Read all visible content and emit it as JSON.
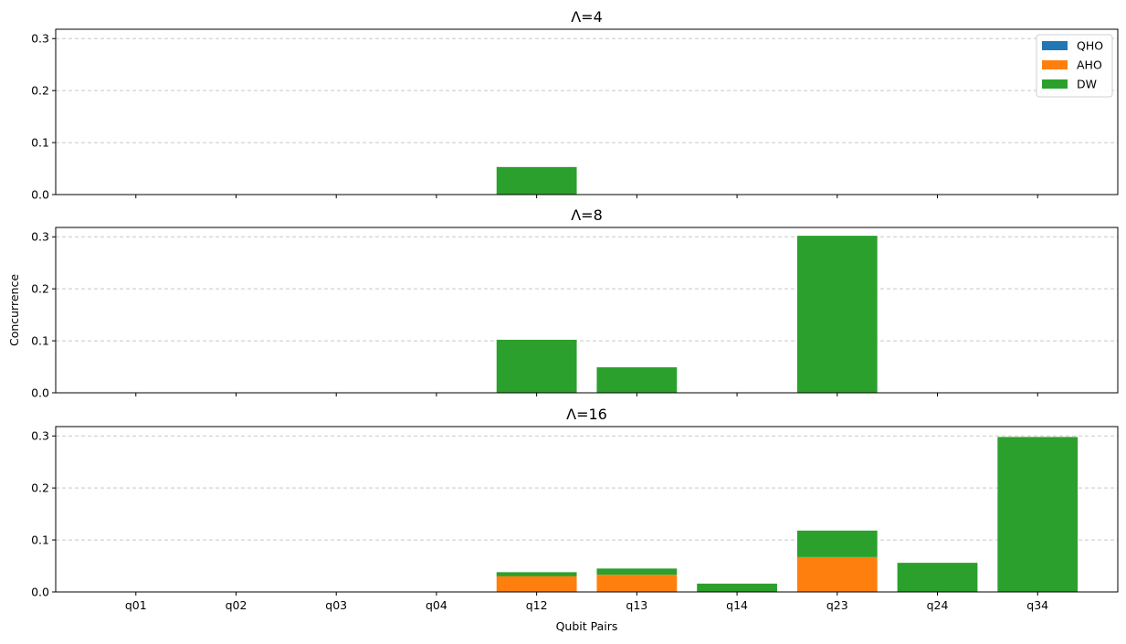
{
  "chart_data": {
    "type": "bar",
    "stacked": true,
    "categories": [
      "q01",
      "q02",
      "q03",
      "q04",
      "q12",
      "q13",
      "q14",
      "q23",
      "q24",
      "q34"
    ],
    "xlabel": "Qubit Pairs",
    "ylabel": "Concurrence",
    "ylim": [
      0,
      0.318
    ],
    "yticks": [
      "0.0",
      "0.1",
      "0.2",
      "0.3"
    ],
    "ytick_values": [
      0,
      0.1,
      0.2,
      0.3
    ],
    "grid": "y-dashed",
    "legend": {
      "placement": "top-right",
      "entries": [
        {
          "name": "QHO",
          "color": "#1f77b4"
        },
        {
          "name": "AHO",
          "color": "#ff7f0e"
        },
        {
          "name": "DW",
          "color": "#2ca02c"
        }
      ]
    },
    "panels": [
      {
        "title": "Λ=4",
        "series": [
          {
            "name": "QHO",
            "values": [
              0,
              0,
              0,
              0,
              0,
              0,
              0,
              0,
              0,
              0
            ]
          },
          {
            "name": "AHO",
            "values": [
              0,
              0,
              0,
              0,
              0,
              0,
              0,
              0,
              0,
              0
            ]
          },
          {
            "name": "DW",
            "values": [
              0,
              0,
              0,
              0,
              0.053,
              0,
              0,
              0,
              0,
              0
            ]
          }
        ]
      },
      {
        "title": "Λ=8",
        "series": [
          {
            "name": "QHO",
            "values": [
              0,
              0,
              0,
              0,
              0,
              0,
              0,
              0,
              0,
              0
            ]
          },
          {
            "name": "AHO",
            "values": [
              0,
              0,
              0,
              0,
              0,
              0,
              0,
              0,
              0,
              0
            ]
          },
          {
            "name": "DW",
            "values": [
              0,
              0,
              0,
              0,
              0.102,
              0.049,
              0,
              0.302,
              0,
              0
            ]
          }
        ]
      },
      {
        "title": "Λ=16",
        "series": [
          {
            "name": "QHO",
            "values": [
              0,
              0,
              0,
              0,
              0,
              0,
              0,
              0,
              0,
              0
            ]
          },
          {
            "name": "AHO",
            "values": [
              0,
              0,
              0,
              0,
              0.03,
              0.033,
              0,
              0.067,
              0,
              0
            ]
          },
          {
            "name": "DW",
            "values": [
              0,
              0,
              0,
              0,
              0.008,
              0.012,
              0.016,
              0.051,
              0.056,
              0.298
            ]
          }
        ]
      }
    ]
  }
}
